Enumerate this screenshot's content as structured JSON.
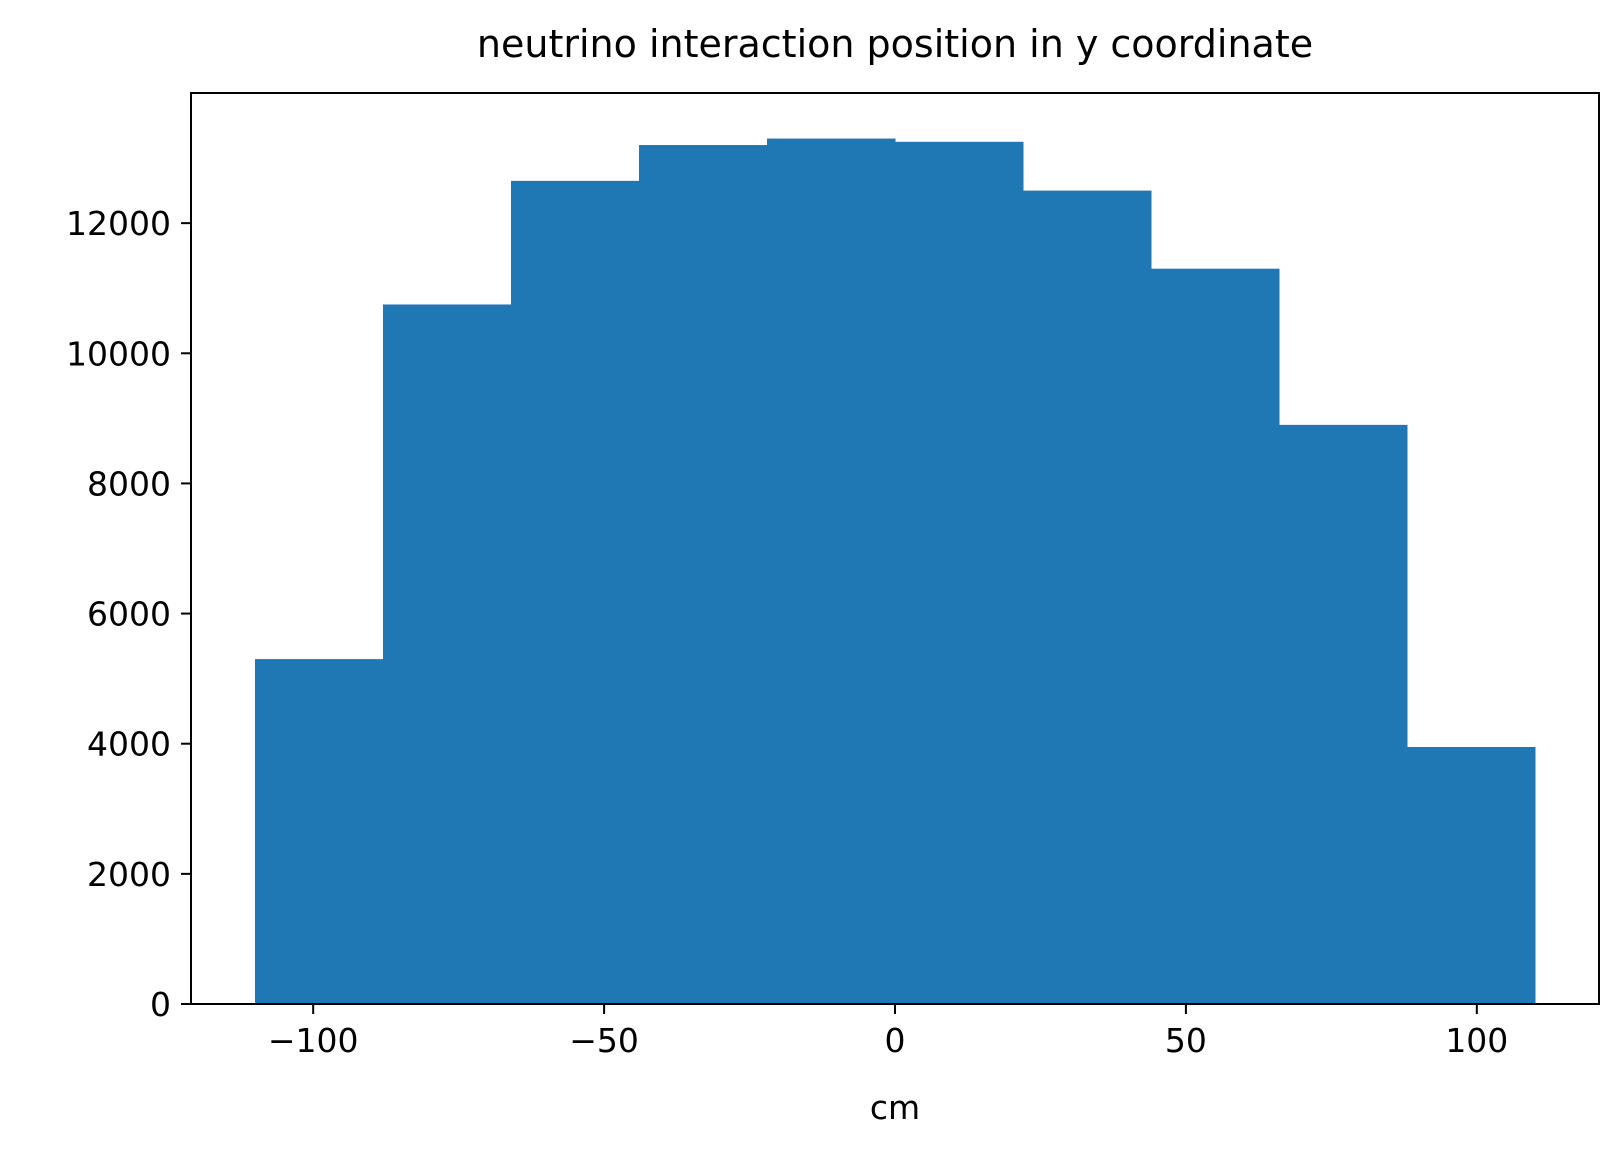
{
  "chart_data": {
    "type": "histogram",
    "title": "neutrino interaction position in y coordinate",
    "xlabel": "cm",
    "ylabel": "",
    "bin_edges": [
      -110,
      -88,
      -66,
      -44,
      -22,
      0,
      22,
      44,
      66,
      88,
      110
    ],
    "counts": [
      5300,
      10750,
      12650,
      13200,
      13300,
      13250,
      12500,
      11300,
      8900,
      3950
    ],
    "xlim": [
      -121,
      121
    ],
    "ylim": [
      0,
      14000
    ],
    "x_ticks": [
      -100,
      -50,
      0,
      50,
      100
    ],
    "x_tick_labels": [
      "−100",
      "−50",
      "0",
      "50",
      "100"
    ],
    "y_ticks": [
      0,
      2000,
      4000,
      6000,
      8000,
      10000,
      12000
    ],
    "y_tick_labels": [
      "0",
      "2000",
      "4000",
      "6000",
      "8000",
      "10000",
      "12000"
    ],
    "bar_color": "#1f77b4",
    "grid": false,
    "legend": "none"
  }
}
